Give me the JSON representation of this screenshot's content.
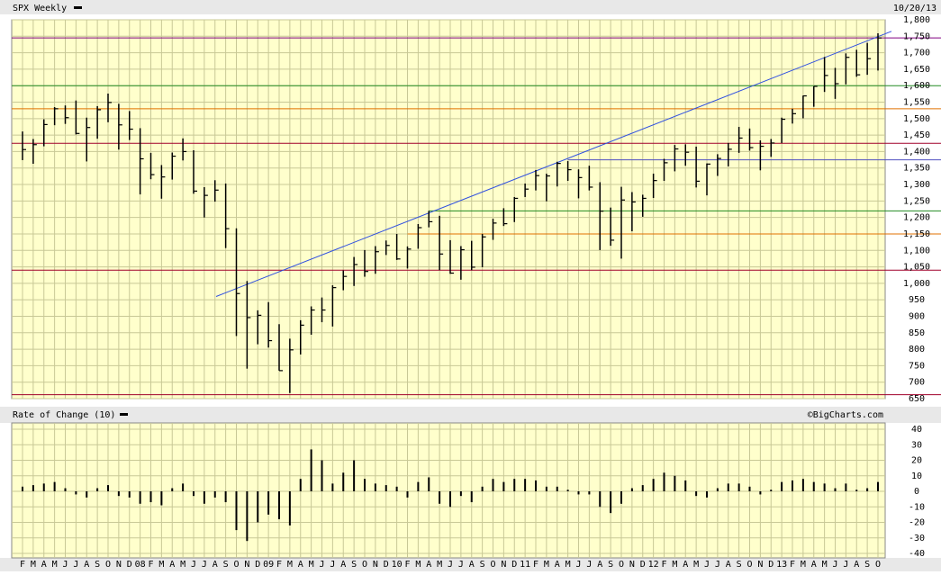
{
  "chart_data": [
    {
      "type": "ohlc",
      "title": "SPX Weekly",
      "date": "10/20/13",
      "color": "#000000",
      "categories": [
        "F",
        "M",
        "A",
        "M",
        "J",
        "J",
        "A",
        "S",
        "O",
        "N",
        "D",
        "08",
        "F",
        "M",
        "A",
        "M",
        "J",
        "J",
        "A",
        "S",
        "O",
        "N",
        "D",
        "09",
        "F",
        "M",
        "A",
        "M",
        "J",
        "J",
        "A",
        "S",
        "O",
        "N",
        "D",
        "10",
        "F",
        "M",
        "A",
        "M",
        "J",
        "J",
        "A",
        "S",
        "O",
        "N",
        "D",
        "11",
        "F",
        "M",
        "A",
        "M",
        "J",
        "J",
        "A",
        "S",
        "O",
        "N",
        "D",
        "12",
        "F",
        "M",
        "A",
        "M",
        "J",
        "J",
        "A",
        "S",
        "O",
        "N",
        "D",
        "13",
        "F",
        "M",
        "A",
        "M",
        "J",
        "J",
        "A",
        "S",
        "O"
      ],
      "high": [
        1461,
        1438,
        1498,
        1535,
        1540,
        1555,
        1503,
        1538,
        1576,
        1545,
        1523,
        1471,
        1396,
        1359,
        1397,
        1440,
        1404,
        1292,
        1313,
        1303,
        1167,
        1007,
        918,
        943,
        876,
        832,
        888,
        930,
        957,
        994,
        1039,
        1080,
        1101,
        1113,
        1130,
        1150,
        1112,
        1180,
        1220,
        1205,
        1131,
        1113,
        1129,
        1150,
        1196,
        1228,
        1262,
        1303,
        1344,
        1333,
        1369,
        1371,
        1346,
        1357,
        1307,
        1230,
        1293,
        1277,
        1269,
        1333,
        1378,
        1420,
        1422,
        1415,
        1364,
        1392,
        1426,
        1475,
        1470,
        1434,
        1438,
        1503,
        1530,
        1570,
        1598,
        1687,
        1654,
        1698,
        1709,
        1730,
        1759
      ],
      "low": [
        1374,
        1363,
        1416,
        1480,
        1484,
        1452,
        1370,
        1439,
        1489,
        1406,
        1435,
        1270,
        1316,
        1257,
        1315,
        1373,
        1272,
        1200,
        1248,
        1107,
        840,
        741,
        815,
        805,
        735,
        667,
        784,
        844,
        882,
        869,
        979,
        992,
        1020,
        1029,
        1086,
        1071,
        1045,
        1105,
        1170,
        1040,
        1029,
        1011,
        1040,
        1049,
        1132,
        1174,
        1186,
        1262,
        1282,
        1249,
        1294,
        1311,
        1258,
        1282,
        1101,
        1114,
        1075,
        1158,
        1202,
        1259,
        1311,
        1340,
        1357,
        1291,
        1267,
        1326,
        1355,
        1396,
        1403,
        1343,
        1384,
        1426,
        1485,
        1501,
        1536,
        1581,
        1560,
        1604,
        1627,
        1633,
        1646
      ],
      "close": [
        1406,
        1421,
        1482,
        1530,
        1503,
        1455,
        1473,
        1527,
        1549,
        1481,
        1468,
        1378,
        1330,
        1323,
        1386,
        1400,
        1280,
        1267,
        1283,
        1166,
        969,
        896,
        903,
        826,
        735,
        798,
        873,
        919,
        919,
        987,
        1021,
        1057,
        1036,
        1096,
        1115,
        1074,
        1104,
        1169,
        1187,
        1089,
        1031,
        1102,
        1049,
        1141,
        1183,
        1181,
        1258,
        1286,
        1327,
        1326,
        1364,
        1345,
        1321,
        1292,
        1219,
        1131,
        1253,
        1247,
        1258,
        1312,
        1366,
        1408,
        1398,
        1310,
        1362,
        1379,
        1407,
        1441,
        1412,
        1416,
        1426,
        1498,
        1515,
        1569,
        1598,
        1631,
        1606,
        1686,
        1633,
        1682,
        1745
      ],
      "ylim": [
        650,
        1800
      ],
      "yticks": [
        650,
        700,
        750,
        800,
        850,
        900,
        950,
        {
          "value": 1000,
          "label": "1,000"
        },
        {
          "value": 1050,
          "label": "1,050"
        },
        {
          "value": 1100,
          "label": "1,100"
        },
        {
          "value": 1150,
          "label": "1,150"
        },
        {
          "value": 1200,
          "label": "1,200"
        },
        {
          "value": 1250,
          "label": "1,250"
        },
        {
          "value": 1300,
          "label": "1,300"
        },
        {
          "value": 1350,
          "label": "1,350"
        },
        {
          "value": 1400,
          "label": "1,400"
        },
        {
          "value": 1450,
          "label": "1,450"
        },
        {
          "value": 1500,
          "label": "1,500"
        },
        {
          "value": 1550,
          "label": "1,550"
        },
        {
          "value": 1600,
          "label": "1,600"
        },
        {
          "value": 1650,
          "label": "1,650"
        },
        {
          "value": 1700,
          "label": "1,700"
        },
        {
          "value": 1750,
          "label": "1,750"
        },
        {
          "value": 1800,
          "label": "1,800"
        }
      ],
      "grid": true,
      "hlines": [
        {
          "value": 1745,
          "color": "#800080"
        },
        {
          "value": 1600,
          "color": "#228b22"
        },
        {
          "value": 1530,
          "color": "#e07000"
        },
        {
          "value": 1425,
          "color": "#a0002a"
        },
        {
          "value": 1375,
          "color": "#5050c0"
        },
        {
          "value": 1220,
          "color": "#228b22"
        },
        {
          "value": 1150,
          "color": "#e07000"
        },
        {
          "value": 1040,
          "color": "#a0002a"
        },
        {
          "value": 662,
          "color": "#a0002a"
        }
      ],
      "trendline": {
        "values": [
          960,
          1765
        ],
        "color": "#3050e0"
      }
    },
    {
      "type": "bar",
      "title": "Rate of Change (10)",
      "credit": "©BigCharts.com",
      "color": "#000000",
      "values": [
        3,
        4,
        5,
        6,
        2,
        -2,
        -4,
        2,
        4,
        -3,
        -4,
        -8,
        -7,
        -9,
        2,
        5,
        -3,
        -8,
        -4,
        -7,
        -25,
        -32,
        -20,
        -15,
        -18,
        -22,
        8,
        27,
        20,
        5,
        12,
        20,
        8,
        5,
        4,
        3,
        -4,
        6,
        9,
        -8,
        -10,
        -3,
        -7,
        3,
        8,
        6,
        8,
        8,
        7,
        3,
        3,
        1,
        -2,
        -2,
        -10,
        -14,
        -8,
        2,
        4,
        8,
        12,
        10,
        7,
        -3,
        -4,
        2,
        5,
        5,
        3,
        -2,
        1,
        6,
        7,
        8,
        6,
        5,
        2,
        5,
        1,
        2,
        6
      ],
      "ylim": [
        -40,
        40
      ],
      "yticks": [
        40,
        30,
        20,
        10,
        0,
        -10,
        -20,
        -30,
        -40
      ],
      "grid": true
    }
  ]
}
